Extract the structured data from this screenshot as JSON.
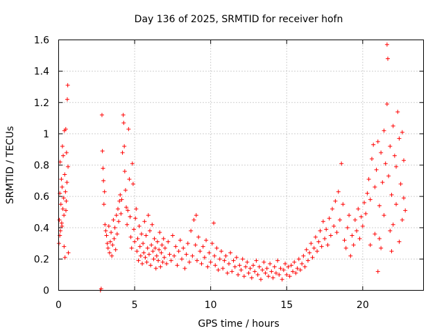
{
  "chart_data": {
    "type": "scatter",
    "title": "Day 136 of 2025, SRMTID for receiver hofn",
    "xlabel": "GPS time / hours",
    "ylabel": "SRMTID / TECUs",
    "xlim": [
      0,
      24
    ],
    "ylim": [
      0,
      1.6
    ],
    "xticks": [
      0,
      5,
      10,
      15,
      20
    ],
    "xtick_labels": [
      "0",
      "5",
      "10",
      "15",
      "20"
    ],
    "yticks": [
      0,
      0.2,
      0.4,
      0.6,
      0.8,
      1.0,
      1.2,
      1.4,
      1.6
    ],
    "ytick_labels": [
      "0",
      "0.2",
      "0.4",
      "0.6",
      "0.8",
      "1",
      "1.2",
      "1.4",
      "1.6"
    ],
    "grid": true,
    "marker": "plus",
    "color": "#ff0000",
    "series": [
      {
        "name": "SRMTID",
        "points": [
          [
            0.02,
            0.3
          ],
          [
            0.05,
            0.45
          ],
          [
            0.08,
            0.62
          ],
          [
            0.1,
            0.82
          ],
          [
            0.12,
            0.38
          ],
          [
            0.15,
            0.55
          ],
          [
            0.18,
            0.71
          ],
          [
            0.2,
            0.43
          ],
          [
            0.23,
            0.66
          ],
          [
            0.25,
            0.92
          ],
          [
            0.28,
            0.52
          ],
          [
            0.3,
            0.86
          ],
          [
            0.33,
            0.59
          ],
          [
            0.35,
            0.48
          ],
          [
            0.38,
            1.02
          ],
          [
            0.4,
            0.74
          ],
          [
            0.42,
            0.21
          ],
          [
            0.45,
            0.63
          ],
          [
            0.47,
            1.03
          ],
          [
            0.5,
            0.57
          ],
          [
            0.52,
            0.88
          ],
          [
            0.55,
            0.69
          ],
          [
            0.57,
            1.22
          ],
          [
            0.6,
            1.31
          ],
          [
            0.62,
            0.79
          ],
          [
            0.64,
            0.24
          ],
          [
            0.08,
            0.35
          ],
          [
            0.22,
            0.41
          ],
          [
            0.36,
            0.28
          ],
          [
            0.48,
            0.51
          ],
          [
            2.75,
            0.0
          ],
          [
            2.8,
            0.01
          ],
          [
            2.85,
            1.12
          ],
          [
            2.88,
            0.89
          ],
          [
            2.92,
            0.78
          ],
          [
            2.95,
            0.7
          ],
          [
            2.98,
            0.55
          ],
          [
            3.02,
            0.63
          ],
          [
            3.05,
            0.42
          ],
          [
            3.1,
            0.38
          ],
          [
            3.15,
            0.35
          ],
          [
            3.2,
            0.3
          ],
          [
            3.25,
            0.27
          ],
          [
            3.3,
            0.41
          ],
          [
            3.35,
            0.24
          ],
          [
            3.4,
            0.31
          ],
          [
            3.45,
            0.37
          ],
          [
            3.5,
            0.22
          ],
          [
            3.55,
            0.29
          ],
          [
            3.6,
            0.45
          ],
          [
            3.65,
            0.33
          ],
          [
            3.7,
            0.4
          ],
          [
            3.75,
            0.26
          ],
          [
            3.8,
            0.48
          ],
          [
            3.85,
            0.36
          ],
          [
            3.9,
            0.52
          ],
          [
            3.95,
            0.44
          ],
          [
            4.0,
            0.57
          ],
          [
            4.05,
            0.61
          ],
          [
            4.1,
            0.49
          ],
          [
            4.15,
            0.58
          ],
          [
            4.2,
            0.88
          ],
          [
            4.25,
            1.12
          ],
          [
            4.28,
            1.07
          ],
          [
            4.32,
            0.92
          ],
          [
            4.35,
            0.76
          ],
          [
            4.4,
            0.64
          ],
          [
            4.45,
            0.53
          ],
          [
            4.5,
            0.42
          ],
          [
            4.55,
            0.51
          ],
          [
            4.6,
            1.03
          ],
          [
            4.65,
            0.71
          ],
          [
            4.7,
            0.47
          ],
          [
            4.75,
            0.34
          ],
          [
            4.8,
            0.27
          ],
          [
            4.85,
            0.81
          ],
          [
            4.9,
            0.68
          ],
          [
            4.95,
            0.39
          ],
          [
            5.0,
            0.31
          ],
          [
            5.05,
            0.46
          ],
          [
            5.1,
            0.52
          ],
          [
            5.15,
            0.25
          ],
          [
            5.2,
            0.33
          ],
          [
            5.25,
            0.19
          ],
          [
            5.3,
            0.41
          ],
          [
            5.35,
            0.28
          ],
          [
            5.4,
            0.22
          ],
          [
            5.45,
            0.36
          ],
          [
            5.5,
            0.17
          ],
          [
            5.55,
            0.3
          ],
          [
            5.6,
            0.24
          ],
          [
            5.65,
            0.44
          ],
          [
            5.7,
            0.21
          ],
          [
            5.75,
            0.35
          ],
          [
            5.8,
            0.18
          ],
          [
            5.85,
            0.27
          ],
          [
            5.9,
            0.48
          ],
          [
            5.95,
            0.23
          ],
          [
            6.0,
            0.38
          ],
          [
            6.05,
            0.16
          ],
          [
            6.1,
            0.29
          ],
          [
            6.15,
            0.42
          ],
          [
            6.2,
            0.25
          ],
          [
            6.25,
            0.2
          ],
          [
            6.3,
            0.33
          ],
          [
            6.35,
            0.27
          ],
          [
            6.4,
            0.14
          ],
          [
            6.45,
            0.22
          ],
          [
            6.5,
            0.31
          ],
          [
            6.55,
            0.19
          ],
          [
            6.6,
            0.26
          ],
          [
            6.65,
            0.37
          ],
          [
            6.7,
            0.15
          ],
          [
            6.75,
            0.24
          ],
          [
            6.8,
            0.29
          ],
          [
            6.85,
            0.18
          ],
          [
            6.9,
            0.33
          ],
          [
            6.95,
            0.21
          ],
          [
            7.0,
            0.27
          ],
          [
            7.1,
            0.17
          ],
          [
            7.2,
            0.31
          ],
          [
            7.3,
            0.23
          ],
          [
            7.4,
            0.19
          ],
          [
            7.5,
            0.35
          ],
          [
            7.6,
            0.22
          ],
          [
            7.7,
            0.28
          ],
          [
            7.8,
            0.16
          ],
          [
            7.9,
            0.25
          ],
          [
            8.0,
            0.32
          ],
          [
            8.1,
            0.2
          ],
          [
            8.2,
            0.27
          ],
          [
            8.3,
            0.14
          ],
          [
            8.4,
            0.23
          ],
          [
            8.5,
            0.3
          ],
          [
            8.6,
            0.18
          ],
          [
            8.7,
            0.38
          ],
          [
            8.8,
            0.22
          ],
          [
            8.9,
            0.45
          ],
          [
            9.0,
            0.29
          ],
          [
            9.05,
            0.48
          ],
          [
            9.1,
            0.19
          ],
          [
            9.2,
            0.34
          ],
          [
            9.3,
            0.25
          ],
          [
            9.4,
            0.17
          ],
          [
            9.5,
            0.28
          ],
          [
            9.6,
            0.21
          ],
          [
            9.7,
            0.32
          ],
          [
            9.8,
            0.15
          ],
          [
            9.9,
            0.24
          ],
          [
            10.0,
            0.18
          ],
          [
            10.1,
            0.3
          ],
          [
            10.2,
            0.43
          ],
          [
            10.25,
            0.22
          ],
          [
            10.3,
            0.16
          ],
          [
            10.4,
            0.27
          ],
          [
            10.5,
            0.13
          ],
          [
            10.6,
            0.2
          ],
          [
            10.7,
            0.25
          ],
          [
            10.8,
            0.14
          ],
          [
            10.9,
            0.19
          ],
          [
            11.0,
            0.22
          ],
          [
            11.1,
            0.11
          ],
          [
            11.2,
            0.17
          ],
          [
            11.3,
            0.24
          ],
          [
            11.4,
            0.12
          ],
          [
            11.5,
            0.19
          ],
          [
            11.6,
            0.15
          ],
          [
            11.7,
            0.21
          ],
          [
            11.8,
            0.1
          ],
          [
            11.9,
            0.16
          ],
          [
            12.0,
            0.13
          ],
          [
            12.1,
            0.2
          ],
          [
            12.2,
            0.09
          ],
          [
            12.3,
            0.15
          ],
          [
            12.4,
            0.18
          ],
          [
            12.5,
            0.11
          ],
          [
            12.6,
            0.14
          ],
          [
            12.7,
            0.08
          ],
          [
            12.8,
            0.16
          ],
          [
            12.9,
            0.12
          ],
          [
            13.0,
            0.19
          ],
          [
            13.1,
            0.1
          ],
          [
            13.2,
            0.15
          ],
          [
            13.3,
            0.07
          ],
          [
            13.4,
            0.13
          ],
          [
            13.5,
            0.18
          ],
          [
            13.6,
            0.11
          ],
          [
            13.7,
            0.14
          ],
          [
            13.8,
            0.09
          ],
          [
            13.9,
            0.17
          ],
          [
            14.0,
            0.12
          ],
          [
            14.1,
            0.08
          ],
          [
            14.2,
            0.15
          ],
          [
            14.3,
            0.11
          ],
          [
            14.4,
            0.19
          ],
          [
            14.5,
            0.1
          ],
          [
            14.6,
            0.14
          ],
          [
            14.7,
            0.07
          ],
          [
            14.8,
            0.13
          ],
          [
            14.9,
            0.17
          ],
          [
            15.0,
            0.1
          ],
          [
            15.1,
            0.15
          ],
          [
            15.2,
            0.09
          ],
          [
            15.3,
            0.16
          ],
          [
            15.4,
            0.12
          ],
          [
            15.5,
            0.18
          ],
          [
            15.6,
            0.11
          ],
          [
            15.7,
            0.14
          ],
          [
            15.8,
            0.2
          ],
          [
            15.9,
            0.13
          ],
          [
            16.0,
            0.17
          ],
          [
            16.1,
            0.22
          ],
          [
            16.2,
            0.15
          ],
          [
            16.3,
            0.26
          ],
          [
            16.4,
            0.19
          ],
          [
            16.5,
            0.24
          ],
          [
            16.6,
            0.3
          ],
          [
            16.7,
            0.21
          ],
          [
            16.8,
            0.27
          ],
          [
            16.9,
            0.34
          ],
          [
            17.0,
            0.25
          ],
          [
            17.1,
            0.31
          ],
          [
            17.2,
            0.38
          ],
          [
            17.3,
            0.28
          ],
          [
            17.4,
            0.44
          ],
          [
            17.5,
            0.33
          ],
          [
            17.6,
            0.39
          ],
          [
            17.7,
            0.29
          ],
          [
            17.8,
            0.46
          ],
          [
            17.9,
            0.35
          ],
          [
            18.0,
            0.52
          ],
          [
            18.1,
            0.41
          ],
          [
            18.2,
            0.57
          ],
          [
            18.3,
            0.37
          ],
          [
            18.4,
            0.63
          ],
          [
            18.5,
            0.45
          ],
          [
            18.6,
            0.81
          ],
          [
            18.7,
            0.55
          ],
          [
            18.8,
            0.32
          ],
          [
            18.9,
            0.27
          ],
          [
            19.0,
            0.4
          ],
          [
            19.1,
            0.48
          ],
          [
            19.2,
            0.22
          ],
          [
            19.3,
            0.35
          ],
          [
            19.4,
            0.29
          ],
          [
            19.5,
            0.45
          ],
          [
            19.6,
            0.38
          ],
          [
            19.7,
            0.52
          ],
          [
            19.8,
            0.33
          ],
          [
            19.9,
            0.47
          ],
          [
            20.0,
            0.41
          ],
          [
            20.1,
            0.56
          ],
          [
            20.2,
            0.49
          ],
          [
            20.3,
            0.62
          ],
          [
            20.4,
            0.71
          ],
          [
            20.5,
            0.58
          ],
          [
            20.6,
            0.84
          ],
          [
            20.7,
            0.93
          ],
          [
            20.8,
            0.66
          ],
          [
            20.9,
            0.77
          ],
          [
            21.0,
            0.95
          ],
          [
            21.1,
            0.54
          ],
          [
            21.2,
            0.88
          ],
          [
            21.3,
            0.69
          ],
          [
            21.4,
            1.02
          ],
          [
            21.5,
            0.81
          ],
          [
            21.6,
            1.19
          ],
          [
            21.7,
            0.73
          ],
          [
            21.8,
            0.92
          ],
          [
            21.9,
            0.61
          ],
          [
            22.0,
            1.05
          ],
          [
            22.1,
            0.86
          ],
          [
            22.2,
            0.79
          ],
          [
            22.3,
            1.14
          ],
          [
            22.4,
            0.97
          ],
          [
            22.5,
            0.68
          ],
          [
            22.6,
            1.01
          ],
          [
            22.7,
            0.83
          ],
          [
            22.8,
            0.51
          ],
          [
            21.6,
            1.57
          ],
          [
            21.65,
            1.48
          ],
          [
            21.2,
            0.27
          ],
          [
            21.8,
            0.38
          ],
          [
            22.0,
            0.42
          ],
          [
            22.4,
            0.31
          ],
          [
            21.0,
            0.12
          ],
          [
            22.6,
            0.45
          ],
          [
            20.8,
            0.36
          ],
          [
            21.4,
            0.48
          ],
          [
            22.2,
            0.55
          ],
          [
            22.7,
            0.59
          ],
          [
            21.1,
            0.33
          ],
          [
            21.9,
            0.25
          ],
          [
            20.5,
            0.29
          ]
        ]
      }
    ]
  }
}
